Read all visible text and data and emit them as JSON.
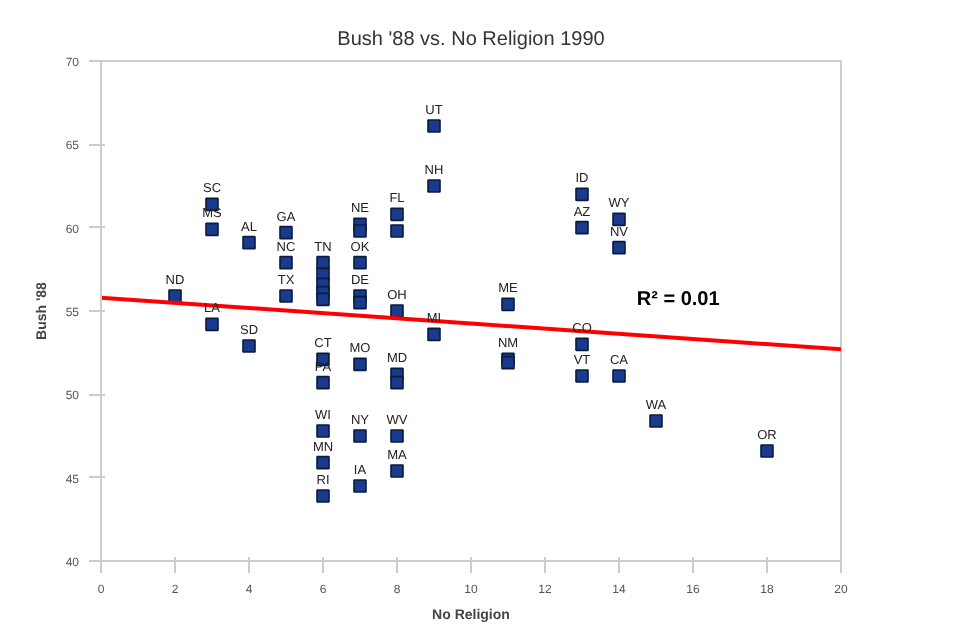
{
  "chart_data": {
    "type": "scatter",
    "title": "Bush '88 vs. No Religion 1990",
    "xlabel": "No Religion",
    "ylabel": "Bush '88",
    "xlim": [
      0,
      20
    ],
    "ylim": [
      40,
      70
    ],
    "xticks": [
      0,
      2,
      4,
      6,
      8,
      10,
      12,
      14,
      16,
      18,
      20
    ],
    "yticks": [
      40,
      45,
      50,
      55,
      60,
      65,
      70
    ],
    "series": [
      {
        "marker": "square",
        "color": "#1a3a8c",
        "x": [
          9,
          9,
          3,
          3,
          4,
          5,
          5,
          5,
          2,
          3,
          4,
          7,
          7,
          8,
          8,
          7,
          6,
          6,
          6,
          6,
          6,
          7,
          7,
          8,
          9,
          11,
          11,
          11,
          6,
          6,
          7,
          8,
          8,
          6,
          7,
          8,
          6,
          8,
          6,
          7,
          13,
          13,
          14,
          14,
          13,
          13,
          14,
          15,
          18
        ],
        "values": [
          66.1,
          62.5,
          61.4,
          59.9,
          59.1,
          59.7,
          57.9,
          55.9,
          55.9,
          54.2,
          52.9,
          60.2,
          59.8,
          60.8,
          59.8,
          57.9,
          57.9,
          57.2,
          56.6,
          56.1,
          55.7,
          55.9,
          55.5,
          55.0,
          53.6,
          55.4,
          52.1,
          51.9,
          52.1,
          50.7,
          51.8,
          51.2,
          50.7,
          47.8,
          47.5,
          47.5,
          45.9,
          45.4,
          43.9,
          44.5,
          62.0,
          60.0,
          60.5,
          58.8,
          53.0,
          51.1,
          51.1,
          48.4,
          46.6
        ]
      },
      {
        "type": "line",
        "color": "#ff0000",
        "x": [
          0,
          20
        ],
        "values": [
          55.8,
          52.7
        ]
      }
    ],
    "annotations": [
      {
        "text": "UT",
        "x": 9,
        "y": 66.1
      },
      {
        "text": "NH",
        "x": 9,
        "y": 62.5
      },
      {
        "text": "SC",
        "x": 3,
        "y": 61.4
      },
      {
        "text": "MS",
        "x": 3,
        "y": 59.9
      },
      {
        "text": "AL",
        "x": 4,
        "y": 59.1
      },
      {
        "text": "GA",
        "x": 5,
        "y": 59.7
      },
      {
        "text": "NC",
        "x": 5,
        "y": 57.9
      },
      {
        "text": "TX",
        "x": 5,
        "y": 55.9
      },
      {
        "text": "ND",
        "x": 2,
        "y": 55.9
      },
      {
        "text": "LA",
        "x": 3,
        "y": 54.2
      },
      {
        "text": "SD",
        "x": 4,
        "y": 52.9
      },
      {
        "text": "NE",
        "x": 7,
        "y": 60.2
      },
      {
        "text": "FL",
        "x": 8,
        "y": 60.8
      },
      {
        "text": "OK",
        "x": 7,
        "y": 57.9
      },
      {
        "text": "TN",
        "x": 6,
        "y": 57.9
      },
      {
        "text": "DE",
        "x": 7,
        "y": 55.9
      },
      {
        "text": "OH",
        "x": 8,
        "y": 55.0
      },
      {
        "text": "MI",
        "x": 9,
        "y": 53.6
      },
      {
        "text": "ME",
        "x": 11,
        "y": 55.4
      },
      {
        "text": "NM",
        "x": 11,
        "y": 52.1
      },
      {
        "text": "CT",
        "x": 6,
        "y": 52.1
      },
      {
        "text": "PA",
        "x": 6,
        "y": 50.7
      },
      {
        "text": "MO",
        "x": 7,
        "y": 51.8
      },
      {
        "text": "MD",
        "x": 8,
        "y": 51.2
      },
      {
        "text": "WI",
        "x": 6,
        "y": 47.8
      },
      {
        "text": "NY",
        "x": 7,
        "y": 47.5
      },
      {
        "text": "WV",
        "x": 8,
        "y": 47.5
      },
      {
        "text": "MN",
        "x": 6,
        "y": 45.9
      },
      {
        "text": "MA",
        "x": 8,
        "y": 45.4
      },
      {
        "text": "RI",
        "x": 6,
        "y": 43.9
      },
      {
        "text": "IA",
        "x": 7,
        "y": 44.5
      },
      {
        "text": "ID",
        "x": 13,
        "y": 62.0
      },
      {
        "text": "AZ",
        "x": 13,
        "y": 60.0
      },
      {
        "text": "WY",
        "x": 14,
        "y": 60.5
      },
      {
        "text": "NV",
        "x": 14,
        "y": 58.8
      },
      {
        "text": "CO",
        "x": 13,
        "y": 53.0
      },
      {
        "text": "VT",
        "x": 13,
        "y": 51.1
      },
      {
        "text": "CA",
        "x": 14,
        "y": 51.1
      },
      {
        "text": "WA",
        "x": 15,
        "y": 48.4
      },
      {
        "text": "OR",
        "x": 18,
        "y": 46.6
      },
      "R² = 0.01"
    ]
  }
}
